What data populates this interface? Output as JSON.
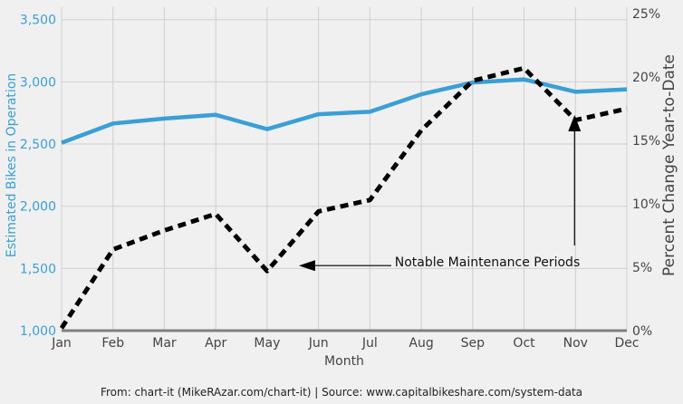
{
  "chart_data": {
    "type": "line",
    "categories": [
      "Jan",
      "Feb",
      "Mar",
      "Apr",
      "May",
      "Jun",
      "Jul",
      "Aug",
      "Sep",
      "Oct",
      "Nov",
      "Dec"
    ],
    "xlabel": "Month",
    "ylabel_left": "Estimated Bikes in Operation",
    "ylabel_right": "Percent Change Year-to-Date",
    "ylim_left": [
      1000,
      3600
    ],
    "ylim_right": [
      0,
      25.5
    ],
    "yticks_left": [
      "1,000",
      "1,500",
      "2,000",
      "2,500",
      "3,000",
      "3,500"
    ],
    "yticks_left_values": [
      1000,
      1500,
      2000,
      2500,
      3000,
      3500
    ],
    "yticks_right": [
      "0%",
      "5%",
      "10%",
      "15%",
      "20%",
      "25%"
    ],
    "yticks_right_values": [
      0,
      5,
      10,
      15,
      20,
      25
    ],
    "grid": true,
    "series": [
      {
        "axis": "left",
        "color": "#3a9fd6",
        "style": "solid",
        "values": [
          2510,
          2665,
          2705,
          2735,
          2620,
          2740,
          2760,
          2900,
          2995,
          3020,
          2920,
          2940
        ]
      },
      {
        "axis": "right",
        "color": "#000000",
        "style": "dashed",
        "values": [
          0.2,
          6.4,
          7.9,
          9.2,
          4.7,
          9.4,
          10.3,
          15.8,
          19.7,
          20.7,
          16.6,
          17.5
        ]
      }
    ],
    "annotation": {
      "text": "Notable Maintenance Periods",
      "targets": [
        {
          "x": "May",
          "y_right": 5.2
        },
        {
          "x": "Nov",
          "y_right": 16.0
        }
      ]
    },
    "colors": {
      "background": "#f0f0f0",
      "grid": "#cfcfcf",
      "left_axis_text": "#3a9fd6",
      "text": "#444444",
      "axis_line": "#808080"
    }
  },
  "footer": {
    "source": "From: chart-it (MikeRAzar.com/chart-it) | Source: www.capitalbikeshare.com/system-data"
  }
}
